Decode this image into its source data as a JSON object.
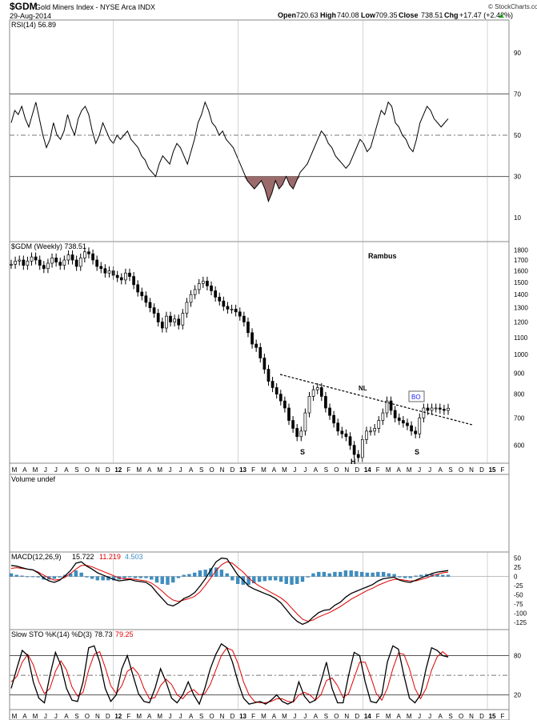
{
  "header": {
    "symbol": "$GDM",
    "name": "Gold Miners Index - NYSE Arca INDX",
    "date": "29-Aug-2014",
    "open_label": "Open",
    "open": "720.63",
    "high_label": "High",
    "high": "740.08",
    "low_label": "Low",
    "low": "709.35",
    "close_label": "Close",
    "close": "738.51",
    "chg_label": "Chg",
    "chg": "+17.47 (+2.42%)",
    "chg_arrow": "▲",
    "watermark": "© StockCharts.com"
  },
  "colors": {
    "price": "#000000",
    "signal": "#e00000",
    "histogram": "#3b8fc4",
    "rsi_fill": "#9b6b6b",
    "bo_box": "#1a1aff",
    "macd_blue": "#3b8fc4"
  },
  "chart_data": [
    {
      "type": "line",
      "title": "RSI(14) 56.89",
      "ylim": [
        0,
        100
      ],
      "yticks": [
        10,
        30,
        50,
        70,
        90
      ],
      "levels": [
        30,
        50,
        70
      ],
      "values": [
        56,
        62,
        60,
        64,
        58,
        54,
        60,
        66,
        58,
        50,
        44,
        48,
        56,
        50,
        48,
        52,
        60,
        54,
        50,
        58,
        62,
        64,
        60,
        52,
        46,
        50,
        56,
        52,
        48,
        46,
        50,
        48,
        50,
        52,
        48,
        46,
        44,
        40,
        38,
        34,
        32,
        30,
        36,
        40,
        38,
        36,
        42,
        46,
        44,
        40,
        36,
        42,
        48,
        56,
        60,
        66,
        62,
        56,
        54,
        50,
        52,
        48,
        46,
        44,
        40,
        36,
        32,
        28,
        26,
        24,
        26,
        28,
        24,
        18,
        22,
        28,
        24,
        26,
        30,
        26,
        24,
        28,
        32,
        34,
        36,
        40,
        44,
        48,
        52,
        50,
        46,
        44,
        40,
        38,
        36,
        34,
        36,
        40,
        44,
        48,
        46,
        42,
        44,
        50,
        56,
        62,
        60,
        66,
        64,
        56,
        54,
        50,
        48,
        44,
        42,
        48,
        56,
        60,
        64,
        62,
        58,
        56,
        54,
        56,
        58
      ]
    },
    {
      "type": "bar",
      "title": "$GDM (Weekly) 738.51",
      "ylim": [
        550,
        1860
      ],
      "yticks": [
        600,
        700,
        800,
        900,
        1000,
        1100,
        1200,
        1300,
        1400,
        1500,
        1600,
        1700,
        1800
      ],
      "annotation": "Rambus",
      "neckline_label": "NL",
      "pattern_labels": [
        "S",
        "H",
        "S"
      ],
      "breakout_label": "BO",
      "values": [
        1660,
        1690,
        1700,
        1650,
        1690,
        1730,
        1700,
        1650,
        1620,
        1670,
        1720,
        1680,
        1650,
        1700,
        1750,
        1700,
        1640,
        1720,
        1780,
        1760,
        1700,
        1640,
        1620,
        1580,
        1600,
        1560,
        1540,
        1520,
        1580,
        1550,
        1480,
        1420,
        1390,
        1340,
        1300,
        1260,
        1200,
        1160,
        1240,
        1200,
        1220,
        1180,
        1260,
        1340,
        1400,
        1440,
        1490,
        1510,
        1470,
        1430,
        1380,
        1350,
        1310,
        1290,
        1290,
        1270,
        1240,
        1200,
        1130,
        1060,
        1040,
        980,
        920,
        860,
        830,
        800,
        770,
        740,
        690,
        660,
        630,
        650,
        720,
        790,
        820,
        830,
        790,
        740,
        710,
        680,
        650,
        640,
        630,
        600,
        570,
        560,
        620,
        650,
        650,
        660,
        690,
        720,
        770,
        730,
        700,
        690,
        680,
        670,
        650,
        640,
        700,
        740,
        730,
        740,
        740,
        735,
        730,
        739
      ]
    },
    {
      "type": "bar",
      "title": "Volume undef",
      "values": []
    },
    {
      "type": "line",
      "title": "MACD(12,26,9)",
      "legend": [
        "15.722",
        "11.219",
        "4.503"
      ],
      "ylim": [
        -140,
        60
      ],
      "yticks": [
        50,
        25,
        0,
        -25,
        -50,
        -75,
        -100,
        -125
      ],
      "series": [
        {
          "name": "15.722",
          "values": [
            30,
            28,
            24,
            20,
            18,
            10,
            -4,
            -12,
            -16,
            -10,
            2,
            16,
            36,
            40,
            28,
            20,
            10,
            4,
            -2,
            -8,
            -12,
            -10,
            -8,
            -12,
            -14,
            -16,
            -26,
            -44,
            -60,
            -76,
            -80,
            -72,
            -60,
            -54,
            -44,
            -26,
            -6,
            18,
            40,
            50,
            48,
            26,
            4,
            -10,
            -26,
            -34,
            -40,
            -46,
            -52,
            -60,
            -72,
            -90,
            -108,
            -122,
            -130,
            -124,
            -110,
            -98,
            -92,
            -90,
            -78,
            -70,
            -56,
            -46,
            -40,
            -34,
            -28,
            -22,
            -12,
            -6,
            -4,
            -2,
            -10,
            -14,
            -16,
            -10,
            -4,
            2,
            8,
            12,
            14,
            16
          ]
        },
        {
          "name": "11.219",
          "values": [
            22,
            24,
            22,
            20,
            18,
            12,
            4,
            -4,
            -10,
            -8,
            -2,
            8,
            20,
            30,
            30,
            26,
            20,
            14,
            8,
            2,
            -4,
            -6,
            -6,
            -8,
            -10,
            -12,
            -18,
            -28,
            -40,
            -54,
            -64,
            -68,
            -64,
            -60,
            -54,
            -42,
            -24,
            -4,
            16,
            32,
            40,
            36,
            24,
            12,
            -4,
            -16,
            -26,
            -34,
            -42,
            -50,
            -58,
            -70,
            -86,
            -102,
            -116,
            -122,
            -118,
            -110,
            -104,
            -98,
            -90,
            -82,
            -72,
            -62,
            -54,
            -46,
            -38,
            -32,
            -24,
            -18,
            -12,
            -8,
            -8,
            -10,
            -12,
            -12,
            -8,
            -4,
            2,
            6,
            10,
            12
          ]
        },
        {
          "name": "4.503",
          "values": [
            8,
            4,
            2,
            0,
            0,
            -2,
            -8,
            -8,
            -6,
            -2,
            4,
            8,
            16,
            10,
            -2,
            -6,
            -10,
            -10,
            -10,
            -10,
            -8,
            -4,
            -2,
            -4,
            -4,
            -4,
            -8,
            -16,
            -20,
            -22,
            -16,
            -4,
            4,
            6,
            10,
            16,
            18,
            22,
            24,
            18,
            8,
            -10,
            -20,
            -22,
            -22,
            -18,
            -14,
            -12,
            -10,
            -10,
            -14,
            -20,
            -22,
            -20,
            -14,
            -2,
            8,
            12,
            12,
            8,
            12,
            12,
            16,
            16,
            14,
            12,
            10,
            10,
            12,
            12,
            8,
            6,
            -2,
            -4,
            -4,
            2,
            4,
            6,
            6,
            6,
            4,
            4
          ]
        }
      ]
    },
    {
      "type": "line",
      "title": "Slow STO %K(14) %D(3)",
      "legend": [
        "78.73",
        "79.25"
      ],
      "ylim": [
        0,
        110
      ],
      "yticks": [
        80,
        20
      ],
      "levels": [
        20,
        50,
        80
      ],
      "series": [
        {
          "name": "78.73",
          "values": [
            30,
            60,
            88,
            80,
            40,
            15,
            8,
            50,
            85,
            65,
            30,
            12,
            10,
            40,
            92,
            95,
            70,
            30,
            10,
            20,
            60,
            80,
            50,
            22,
            10,
            8,
            30,
            60,
            40,
            15,
            8,
            20,
            40,
            20,
            6,
            30,
            60,
            82,
            98,
            92,
            70,
            40,
            15,
            6,
            8,
            10,
            6,
            12,
            20,
            10,
            6,
            10,
            40,
            18,
            8,
            12,
            40,
            70,
            30,
            8,
            8,
            50,
            85,
            80,
            40,
            10,
            8,
            20,
            70,
            95,
            90,
            50,
            15,
            8,
            20,
            60,
            92,
            88,
            80,
            78
          ]
        },
        {
          "name": "79.25",
          "values": [
            40,
            48,
            70,
            82,
            66,
            40,
            22,
            30,
            56,
            72,
            58,
            32,
            18,
            24,
            58,
            82,
            86,
            62,
            34,
            22,
            34,
            56,
            62,
            52,
            30,
            14,
            16,
            34,
            44,
            36,
            20,
            14,
            24,
            28,
            20,
            22,
            36,
            58,
            80,
            92,
            88,
            68,
            40,
            20,
            10,
            8,
            8,
            10,
            14,
            14,
            10,
            9,
            20,
            24,
            20,
            12,
            20,
            42,
            46,
            34,
            16,
            22,
            46,
            70,
            70,
            48,
            22,
            12,
            30,
            60,
            84,
            82,
            60,
            30,
            14,
            30,
            58,
            78,
            86,
            79
          ]
        }
      ]
    }
  ],
  "x_axis": {
    "labels": [
      "M",
      "A",
      "M",
      "J",
      "J",
      "A",
      "S",
      "O",
      "N",
      "D",
      "12",
      "F",
      "M",
      "A",
      "M",
      "J",
      "J",
      "A",
      "S",
      "O",
      "N",
      "D",
      "13",
      "F",
      "M",
      "A",
      "M",
      "J",
      "J",
      "A",
      "S",
      "O",
      "N",
      "D",
      "14",
      "F",
      "M",
      "A",
      "M",
      "J",
      "J",
      "A",
      "S",
      "O",
      "N",
      "D",
      "15",
      "F"
    ],
    "year_labels": [
      "12",
      "13",
      "14",
      "15"
    ]
  }
}
